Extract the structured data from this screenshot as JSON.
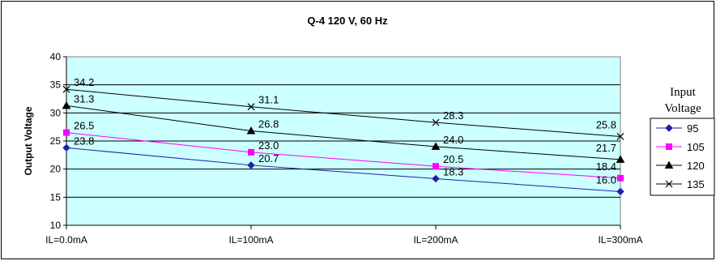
{
  "chart_data": {
    "type": "line",
    "title": "Q-4 120 V, 60 Hz",
    "xlabel": "",
    "ylabel": "Output Voltage",
    "categories": [
      "IL=0.0mA",
      "IL=100mA",
      "IL=200mA",
      "IL=300mA"
    ],
    "ylim": [
      10,
      40
    ],
    "yticks": [
      "10",
      "15",
      "20",
      "25",
      "30",
      "35",
      "40"
    ],
    "grid": "horizontal",
    "legend_title": [
      "Input",
      "Voltage"
    ],
    "legend_position": "right",
    "series": [
      {
        "name": "95",
        "values": [
          23.8,
          20.7,
          18.3,
          16.0
        ],
        "labels": [
          "23.8",
          "20.7",
          "18.3",
          "16.0"
        ],
        "color": "#1f1fa8",
        "marker": "diamond"
      },
      {
        "name": "105",
        "values": [
          26.5,
          23.0,
          20.5,
          18.4
        ],
        "labels": [
          "26.5",
          "23.0",
          "20.5",
          "18.4"
        ],
        "color": "#ff00ff",
        "marker": "square"
      },
      {
        "name": "120",
        "values": [
          31.3,
          26.8,
          24.0,
          21.7
        ],
        "labels": [
          "31.3",
          "26.8",
          "24.0",
          "21.7"
        ],
        "color": "#000000",
        "marker": "triangle"
      },
      {
        "name": "135",
        "values": [
          34.2,
          31.1,
          28.3,
          25.8
        ],
        "labels": [
          "34.2",
          "31.1",
          "28.3",
          "25.8"
        ],
        "color": "#000000",
        "marker": "x"
      }
    ],
    "plot_background": "#ccffff"
  }
}
